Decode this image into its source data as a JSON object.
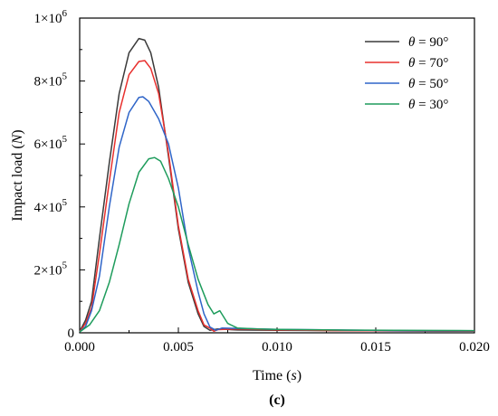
{
  "chart_data": {
    "type": "line",
    "xlabel": "Time (",
    "xlabel_unit": "s",
    "xlabel_close": ")",
    "ylabel": "Impact load (",
    "ylabel_unit": "N",
    "ylabel_close": ")",
    "xlim": [
      0,
      0.02
    ],
    "ylim": [
      0,
      1000000
    ],
    "x_ticks": [
      {
        "value": 0.0,
        "label": "0.000"
      },
      {
        "value": 0.005,
        "label": "0.005"
      },
      {
        "value": 0.01,
        "label": "0.010"
      },
      {
        "value": 0.015,
        "label": "0.015"
      },
      {
        "value": 0.02,
        "label": "0.020"
      }
    ],
    "y_ticks": [
      {
        "value": 0,
        "base": "0",
        "exp": ""
      },
      {
        "value": 200000,
        "base": "2×10",
        "exp": "5"
      },
      {
        "value": 400000,
        "base": "4×10",
        "exp": "5"
      },
      {
        "value": 600000,
        "base": "6×10",
        "exp": "5"
      },
      {
        "value": 800000,
        "base": "8×10",
        "exp": "5"
      },
      {
        "value": 1000000,
        "base": "1×10",
        "exp": "6"
      }
    ],
    "grid": false,
    "legend_position": "top-right",
    "legend_symbol": "θ",
    "panel_label": "(c)",
    "series": [
      {
        "name": "θ = 90°",
        "color": "#3a3a3a",
        "points": [
          [
            0,
            5000
          ],
          [
            0.0003,
            40000
          ],
          [
            0.0006,
            100000
          ],
          [
            0.001,
            300000
          ],
          [
            0.0015,
            540000
          ],
          [
            0.002,
            760000
          ],
          [
            0.0025,
            890000
          ],
          [
            0.003,
            935000
          ],
          [
            0.0033,
            930000
          ],
          [
            0.0036,
            890000
          ],
          [
            0.004,
            780000
          ],
          [
            0.0045,
            560000
          ],
          [
            0.005,
            330000
          ],
          [
            0.0055,
            160000
          ],
          [
            0.006,
            60000
          ],
          [
            0.0063,
            20000
          ],
          [
            0.0066,
            8000
          ],
          [
            0.007,
            12000
          ],
          [
            0.008,
            9000
          ],
          [
            0.01,
            8000
          ],
          [
            0.013,
            7000
          ],
          [
            0.016,
            6000
          ],
          [
            0.02,
            5000
          ]
        ]
      },
      {
        "name": "θ = 70°",
        "color": "#e8302e",
        "points": [
          [
            0,
            3000
          ],
          [
            0.0003,
            30000
          ],
          [
            0.0006,
            80000
          ],
          [
            0.001,
            250000
          ],
          [
            0.0015,
            480000
          ],
          [
            0.002,
            700000
          ],
          [
            0.0025,
            820000
          ],
          [
            0.003,
            862000
          ],
          [
            0.0033,
            865000
          ],
          [
            0.0036,
            840000
          ],
          [
            0.004,
            760000
          ],
          [
            0.0045,
            570000
          ],
          [
            0.005,
            340000
          ],
          [
            0.0055,
            170000
          ],
          [
            0.006,
            70000
          ],
          [
            0.0063,
            25000
          ],
          [
            0.0066,
            15000
          ],
          [
            0.0068,
            5000
          ],
          [
            0.007,
            10000
          ],
          [
            0.008,
            12000
          ],
          [
            0.01,
            9000
          ],
          [
            0.013,
            7000
          ],
          [
            0.016,
            6000
          ],
          [
            0.02,
            5000
          ]
        ]
      },
      {
        "name": "θ = 50°",
        "color": "#2f65c8",
        "points": [
          [
            0,
            3000
          ],
          [
            0.0003,
            20000
          ],
          [
            0.0006,
            70000
          ],
          [
            0.001,
            180000
          ],
          [
            0.0015,
            400000
          ],
          [
            0.002,
            590000
          ],
          [
            0.0025,
            700000
          ],
          [
            0.003,
            748000
          ],
          [
            0.0032,
            750000
          ],
          [
            0.0035,
            735000
          ],
          [
            0.004,
            680000
          ],
          [
            0.0045,
            600000
          ],
          [
            0.005,
            460000
          ],
          [
            0.0055,
            270000
          ],
          [
            0.006,
            130000
          ],
          [
            0.0063,
            60000
          ],
          [
            0.0066,
            18000
          ],
          [
            0.0069,
            8000
          ],
          [
            0.0072,
            15000
          ],
          [
            0.008,
            14000
          ],
          [
            0.01,
            11000
          ],
          [
            0.013,
            9000
          ],
          [
            0.016,
            7000
          ],
          [
            0.02,
            6000
          ]
        ]
      },
      {
        "name": "θ = 30°",
        "color": "#1e9c5c",
        "points": [
          [
            0,
            3000
          ],
          [
            0.0005,
            25000
          ],
          [
            0.001,
            70000
          ],
          [
            0.0015,
            160000
          ],
          [
            0.002,
            280000
          ],
          [
            0.0025,
            410000
          ],
          [
            0.003,
            510000
          ],
          [
            0.0035,
            553000
          ],
          [
            0.0038,
            557000
          ],
          [
            0.0041,
            545000
          ],
          [
            0.0045,
            490000
          ],
          [
            0.005,
            400000
          ],
          [
            0.0055,
            280000
          ],
          [
            0.006,
            170000
          ],
          [
            0.0065,
            90000
          ],
          [
            0.0068,
            60000
          ],
          [
            0.0071,
            70000
          ],
          [
            0.0075,
            30000
          ],
          [
            0.008,
            15000
          ],
          [
            0.009,
            12000
          ],
          [
            0.01,
            11000
          ],
          [
            0.013,
            9000
          ],
          [
            0.016,
            8000
          ],
          [
            0.02,
            7000
          ]
        ]
      }
    ]
  }
}
